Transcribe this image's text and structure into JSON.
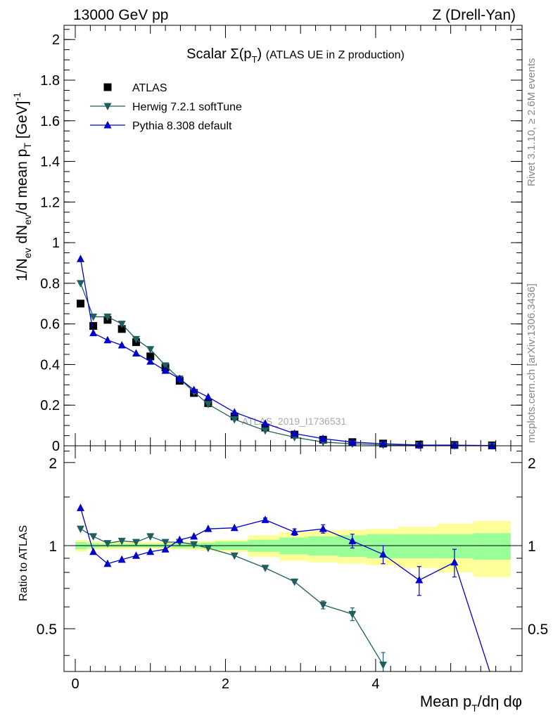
{
  "header": {
    "left": "13000 GeV pp",
    "right": "Z (Drell-Yan)"
  },
  "side_labels": {
    "right_top": "Rivet 3.1.10, ≥ 2.6M events",
    "right_bottom": "mcplots.cern.ch [arXiv:1306.3436]"
  },
  "watermark": "ATLAS_2019_I1736531",
  "chart_data": [
    {
      "type": "scatter",
      "panel": "main",
      "title": "Scalar Σ(p_T) (ATLAS UE in Z production)",
      "xlabel": "Mean p_T/dη dφ",
      "ylabel": "1/N_ev dN_ev/d mean p_T [GeV]^-1",
      "xlim": [
        -0.15,
        5.95
      ],
      "ylim": [
        0,
        2.07
      ],
      "y_ticks": [
        0,
        0.2,
        0.4,
        0.6,
        0.8,
        1,
        1.2,
        1.4,
        1.6,
        1.8,
        2
      ],
      "y_tick_labels": [
        "0",
        "0.2",
        "0.4",
        "0.6",
        "0.8",
        "1",
        "1.2",
        "1.4",
        "1.6",
        "1.8",
        "2"
      ],
      "legend_position": "top-left",
      "series": [
        {
          "name": "ATLAS",
          "marker": "square",
          "color": "#000000",
          "x": [
            0.07,
            0.24,
            0.43,
            0.62,
            0.81,
            1.0,
            1.2,
            1.39,
            1.58,
            1.77,
            2.12,
            2.53,
            2.92,
            3.3,
            3.69,
            4.1,
            4.58,
            5.05,
            5.55
          ],
          "y": [
            0.7,
            0.59,
            0.62,
            0.575,
            0.51,
            0.44,
            0.385,
            0.32,
            0.26,
            0.21,
            0.145,
            0.09,
            0.055,
            0.03,
            0.018,
            0.011,
            0.006,
            0.004,
            0.002
          ]
        },
        {
          "name": "Herwig 7.2.1 softTune",
          "marker": "triangle-down",
          "color": "#1f5e5e",
          "x": [
            0.07,
            0.24,
            0.43,
            0.62,
            0.81,
            1.0,
            1.2,
            1.39,
            1.58,
            1.77,
            2.12,
            2.53,
            2.92,
            3.3,
            3.69,
            4.1,
            4.58,
            5.05,
            5.55
          ],
          "y": [
            0.8,
            0.635,
            0.635,
            0.6,
            0.525,
            0.475,
            0.395,
            0.33,
            0.265,
            0.205,
            0.13,
            0.075,
            0.042,
            0.018,
            0.01,
            0.004,
            0.002,
            0.001,
            0.0005
          ]
        },
        {
          "name": "Pythia 8.308 default",
          "marker": "triangle-up",
          "color": "#0000cc",
          "x": [
            0.07,
            0.24,
            0.43,
            0.62,
            0.81,
            1.0,
            1.2,
            1.39,
            1.58,
            1.77,
            2.12,
            2.53,
            2.92,
            3.3,
            3.69,
            4.1,
            4.58,
            5.05,
            5.55
          ],
          "y": [
            0.92,
            0.555,
            0.52,
            0.495,
            0.455,
            0.415,
            0.37,
            0.33,
            0.275,
            0.24,
            0.165,
            0.11,
            0.06,
            0.035,
            0.018,
            0.01,
            0.004,
            0.003,
            0.001
          ]
        }
      ]
    },
    {
      "type": "line",
      "panel": "ratio",
      "ylabel": "Ratio to ATLAS",
      "xlabel": "Mean p_T/dη dφ",
      "xlim": [
        -0.15,
        5.95
      ],
      "ylim": [
        0.35,
        2.3
      ],
      "x_ticks": [
        0,
        2,
        4
      ],
      "x_tick_labels": [
        "0",
        "2",
        "4"
      ],
      "y_ticks": [
        0.5,
        1,
        2
      ],
      "y_tick_labels": [
        "0.5",
        "1",
        "2"
      ],
      "bands": {
        "bin_edges": [
          0,
          0.15,
          0.33,
          0.52,
          0.71,
          0.9,
          1.1,
          1.3,
          1.48,
          1.67,
          1.86,
          2.3,
          2.72,
          3.1,
          3.5,
          3.88,
          4.3,
          4.82,
          5.3,
          5.8
        ],
        "inner_half_width": [
          0.03,
          0.02,
          0.015,
          0.015,
          0.015,
          0.015,
          0.015,
          0.02,
          0.02,
          0.025,
          0.035,
          0.05,
          0.07,
          0.08,
          0.09,
          0.1,
          0.1,
          0.1,
          0.11
        ],
        "outer_half_width": [
          0.05,
          0.035,
          0.03,
          0.03,
          0.03,
          0.03,
          0.03,
          0.03,
          0.035,
          0.04,
          0.05,
          0.09,
          0.12,
          0.13,
          0.14,
          0.15,
          0.17,
          0.2,
          0.23
        ],
        "inner_color": "#99ff99",
        "outer_color": "#ffff99"
      },
      "series": [
        {
          "name": "Herwig 7.2.1 softTune",
          "marker": "triangle-down",
          "color": "#1f5e5e",
          "x": [
            0.07,
            0.24,
            0.43,
            0.62,
            0.81,
            1.0,
            1.2,
            1.39,
            1.58,
            1.77,
            2.12,
            2.53,
            2.92,
            3.3,
            3.69,
            4.1
          ],
          "y": [
            1.15,
            1.08,
            1.02,
            1.04,
            1.03,
            1.08,
            1.03,
            1.03,
            1.01,
            0.98,
            0.92,
            0.83,
            0.74,
            0.61,
            0.565,
            0.37
          ],
          "err": [
            0,
            0,
            0,
            0,
            0,
            0,
            0,
            0,
            0,
            0,
            0,
            0,
            0.005,
            0.02,
            0.03,
            0.04
          ]
        },
        {
          "name": "Pythia 8.308 default",
          "marker": "triangle-up",
          "color": "#0000cc",
          "x": [
            0.07,
            0.24,
            0.43,
            0.62,
            0.81,
            1.0,
            1.2,
            1.39,
            1.58,
            1.77,
            2.12,
            2.53,
            2.92,
            3.3,
            3.69,
            4.1,
            4.58,
            5.05,
            5.55
          ],
          "y": [
            1.37,
            0.95,
            0.86,
            0.89,
            0.92,
            0.95,
            0.97,
            1.05,
            1.08,
            1.15,
            1.16,
            1.24,
            1.12,
            1.15,
            1.04,
            0.93,
            0.75,
            0.87,
            0.33
          ],
          "err": [
            0,
            0,
            0,
            0,
            0,
            0,
            0,
            0,
            0,
            0,
            0,
            0.02,
            0.03,
            0.04,
            0.06,
            0.07,
            0.09,
            0.1,
            0
          ]
        }
      ]
    }
  ]
}
